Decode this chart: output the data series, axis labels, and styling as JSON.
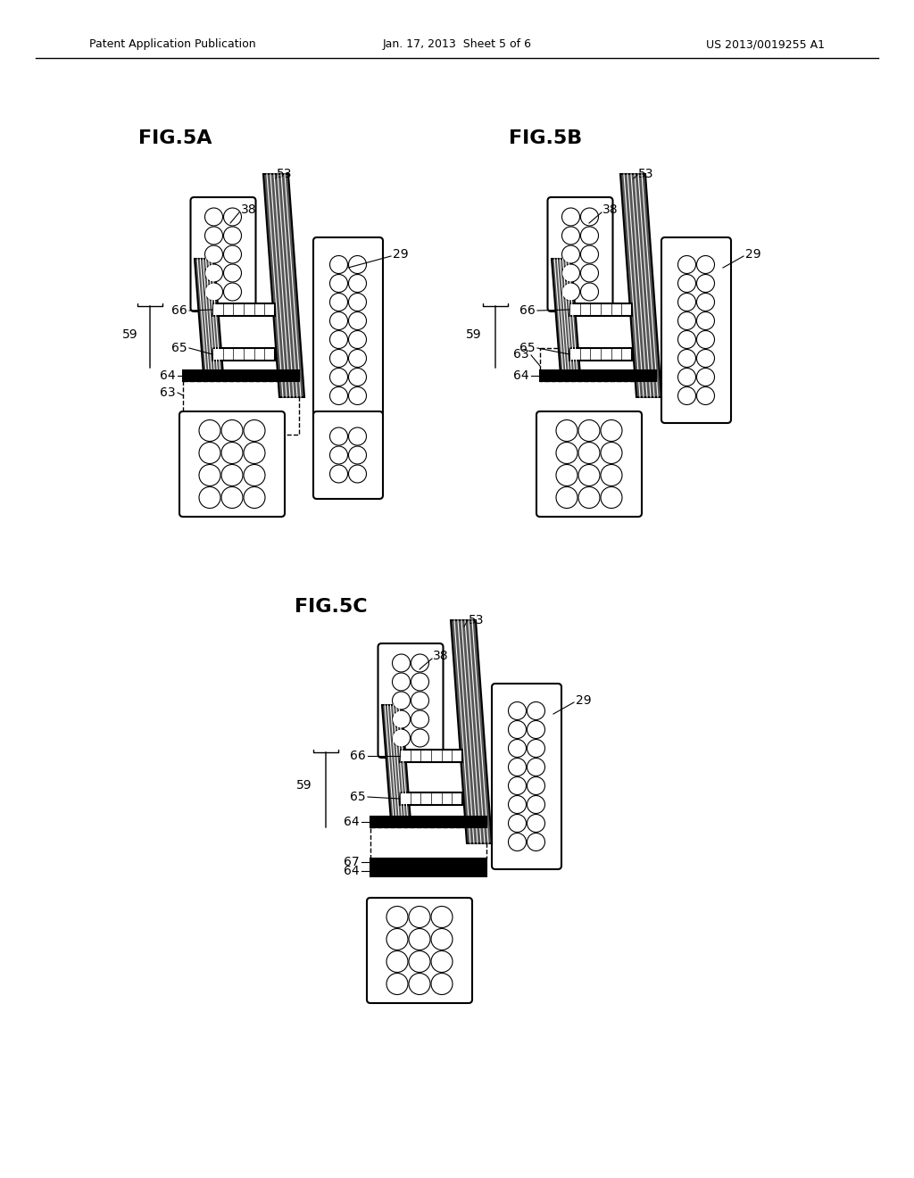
{
  "background_color": "#ffffff",
  "header_left": "Patent Application Publication",
  "header_center": "Jan. 17, 2013  Sheet 5 of 6",
  "header_right": "US 2013/0019255 A1",
  "fig5a_title": "FIG.5A",
  "fig5b_title": "FIG.5B",
  "fig5c_title": "FIG.5C"
}
